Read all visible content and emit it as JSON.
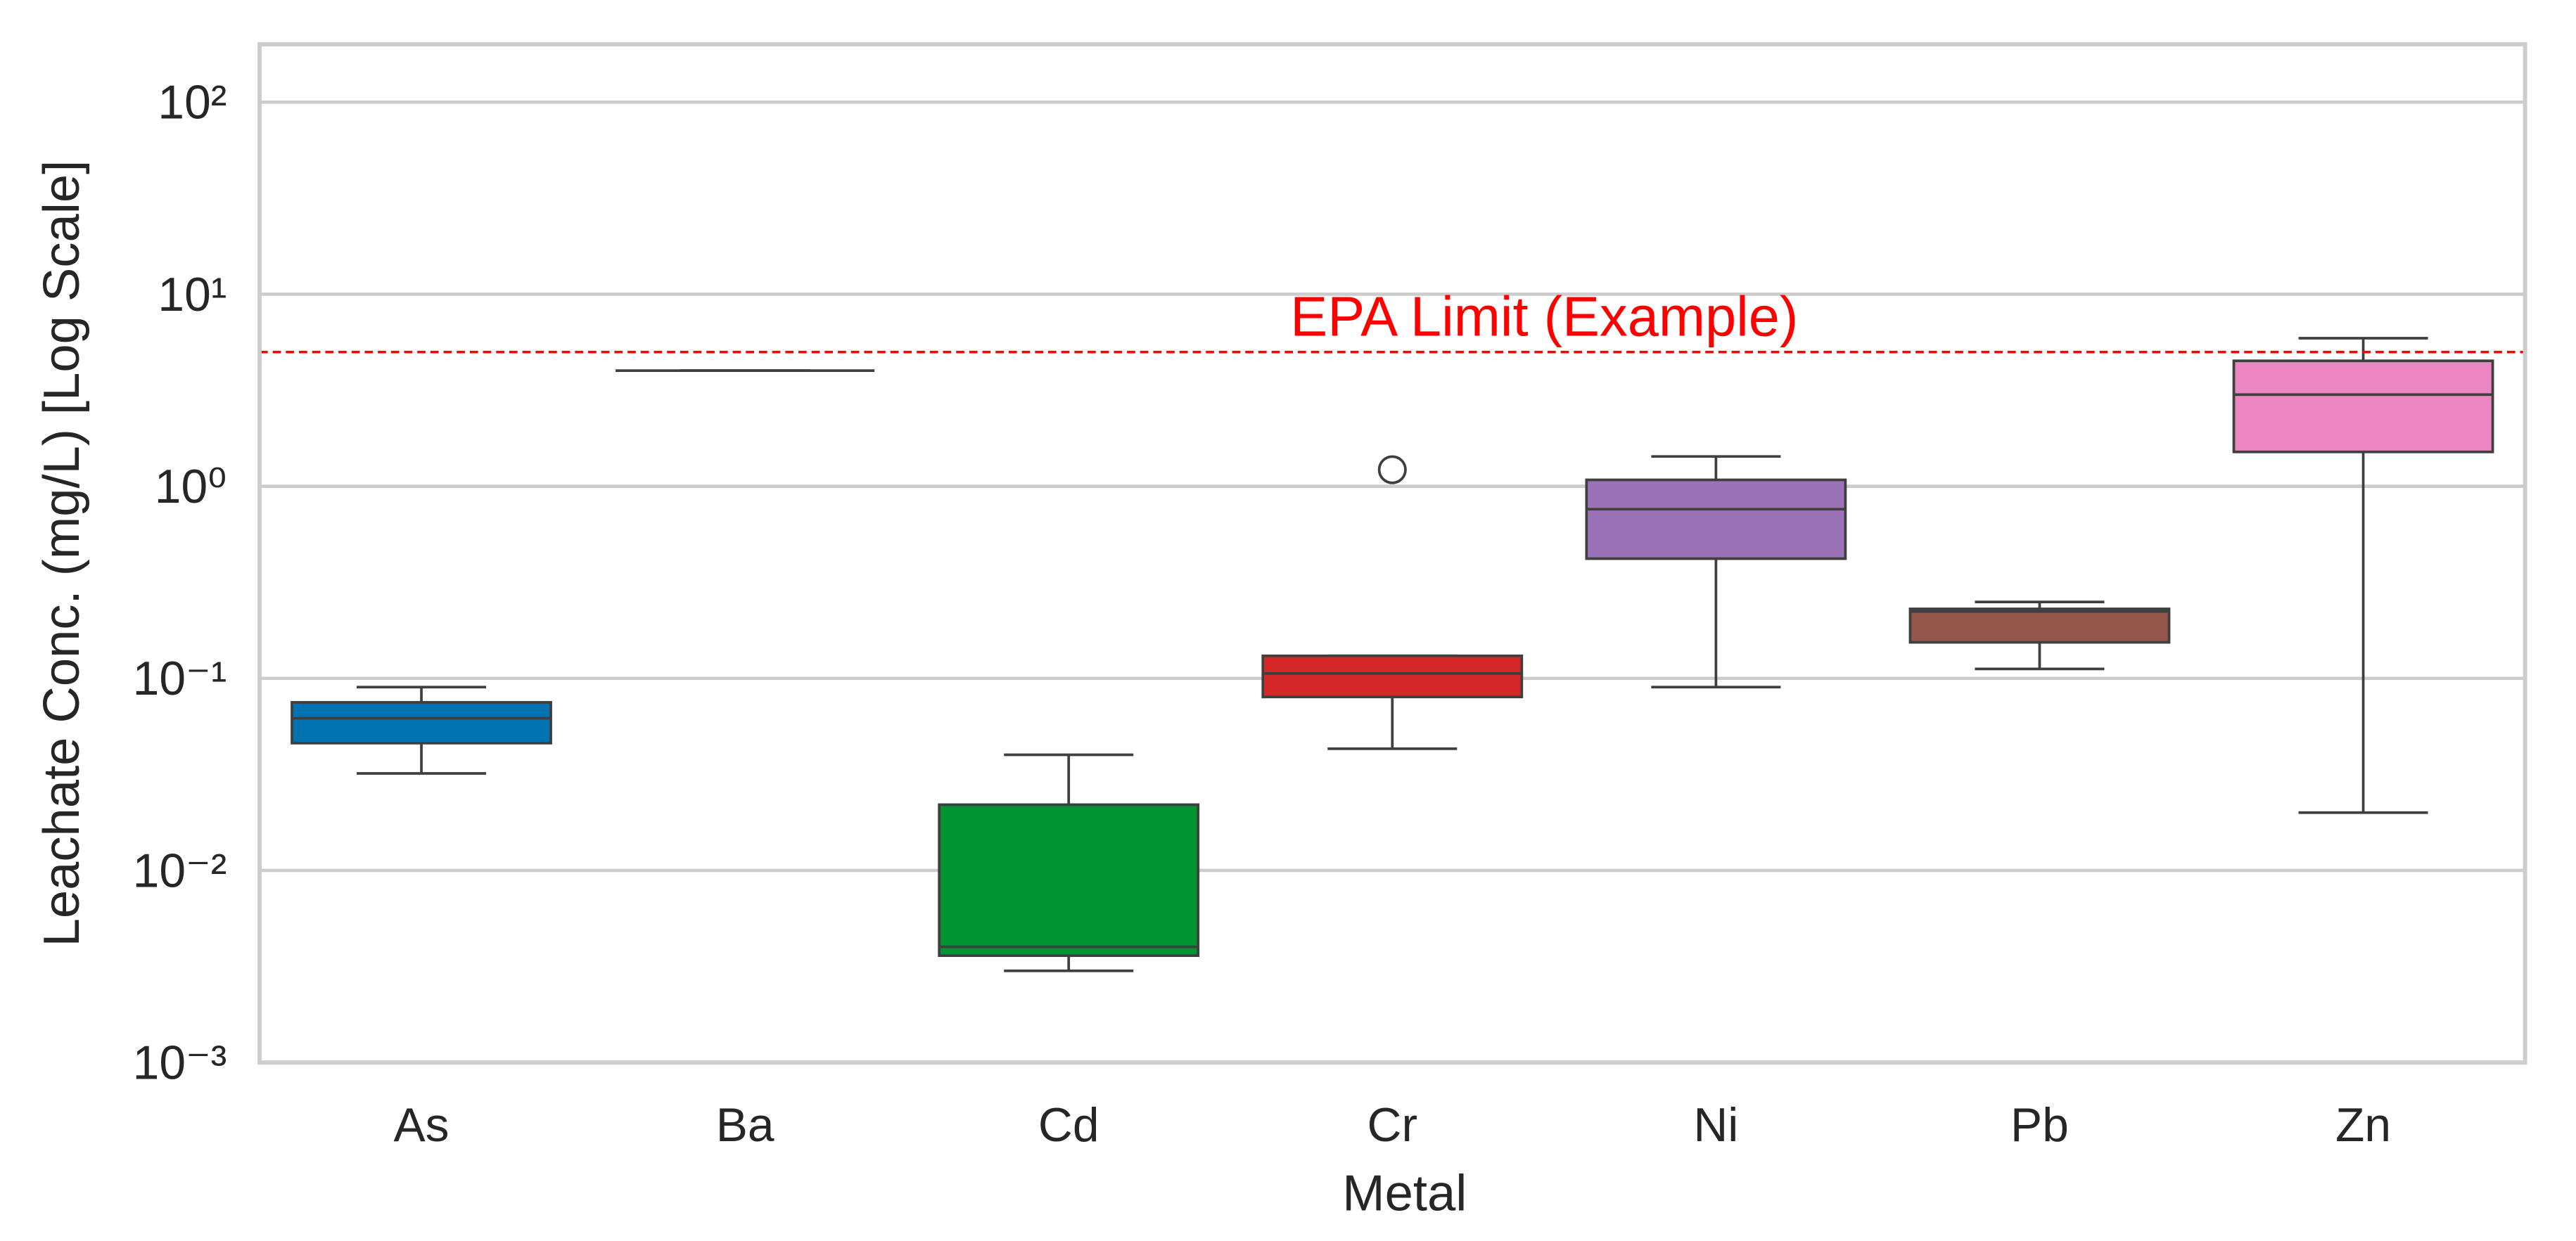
{
  "chart_data": {
    "type": "box",
    "x_label": "Metal",
    "y_label": "Leachate Conc. (mg/L) [Log Scale]",
    "y_scale": "log",
    "grid": true,
    "ylim": [
      0.001,
      200
    ],
    "yticks": [
      {
        "value": 0.001,
        "label": "10⁻³"
      },
      {
        "value": 0.01,
        "label": "10⁻²"
      },
      {
        "value": 0.1,
        "label": "10⁻¹"
      },
      {
        "value": 1,
        "label": "10⁰"
      },
      {
        "value": 10,
        "label": "10¹"
      },
      {
        "value": 100,
        "label": "10²"
      }
    ],
    "categories": [
      "As",
      "Ba",
      "Cd",
      "Cr",
      "Ni",
      "Pb",
      "Zn"
    ],
    "boxes": [
      {
        "color": "#0173b2",
        "whislo": 0.032,
        "q1": 0.046,
        "median": 0.062,
        "q3": 0.075,
        "whishi": 0.09
      },
      {
        "color": "#de8f05",
        "whislo": 4.0,
        "q1": 4.0,
        "median": 4.0,
        "q3": 4.0,
        "whishi": 4.0
      },
      {
        "color": "#009432",
        "whislo": 0.003,
        "q1": 0.0036,
        "median": 0.004,
        "q3": 0.022,
        "whishi": 0.04
      },
      {
        "color": "#d62728",
        "whislo": 0.043,
        "q1": 0.08,
        "median": 0.106,
        "q3": 0.131,
        "whishi": 0.131,
        "fliers": [
          1.22
        ]
      },
      {
        "color": "#9b72b8",
        "whislo": 0.09,
        "q1": 0.42,
        "median": 0.76,
        "q3": 1.08,
        "whishi": 1.43
      },
      {
        "color": "#95564c",
        "whislo": 0.112,
        "q1": 0.154,
        "median": 0.223,
        "q3": 0.23,
        "whishi": 0.25
      },
      {
        "color": "#ec86c2",
        "whislo": 0.02,
        "q1": 1.51,
        "median": 3.0,
        "q3": 4.5,
        "whishi": 5.9
      }
    ],
    "reference_line": {
      "value": 5,
      "label": "EPA Limit (Example)",
      "color": "#ff0000"
    }
  }
}
